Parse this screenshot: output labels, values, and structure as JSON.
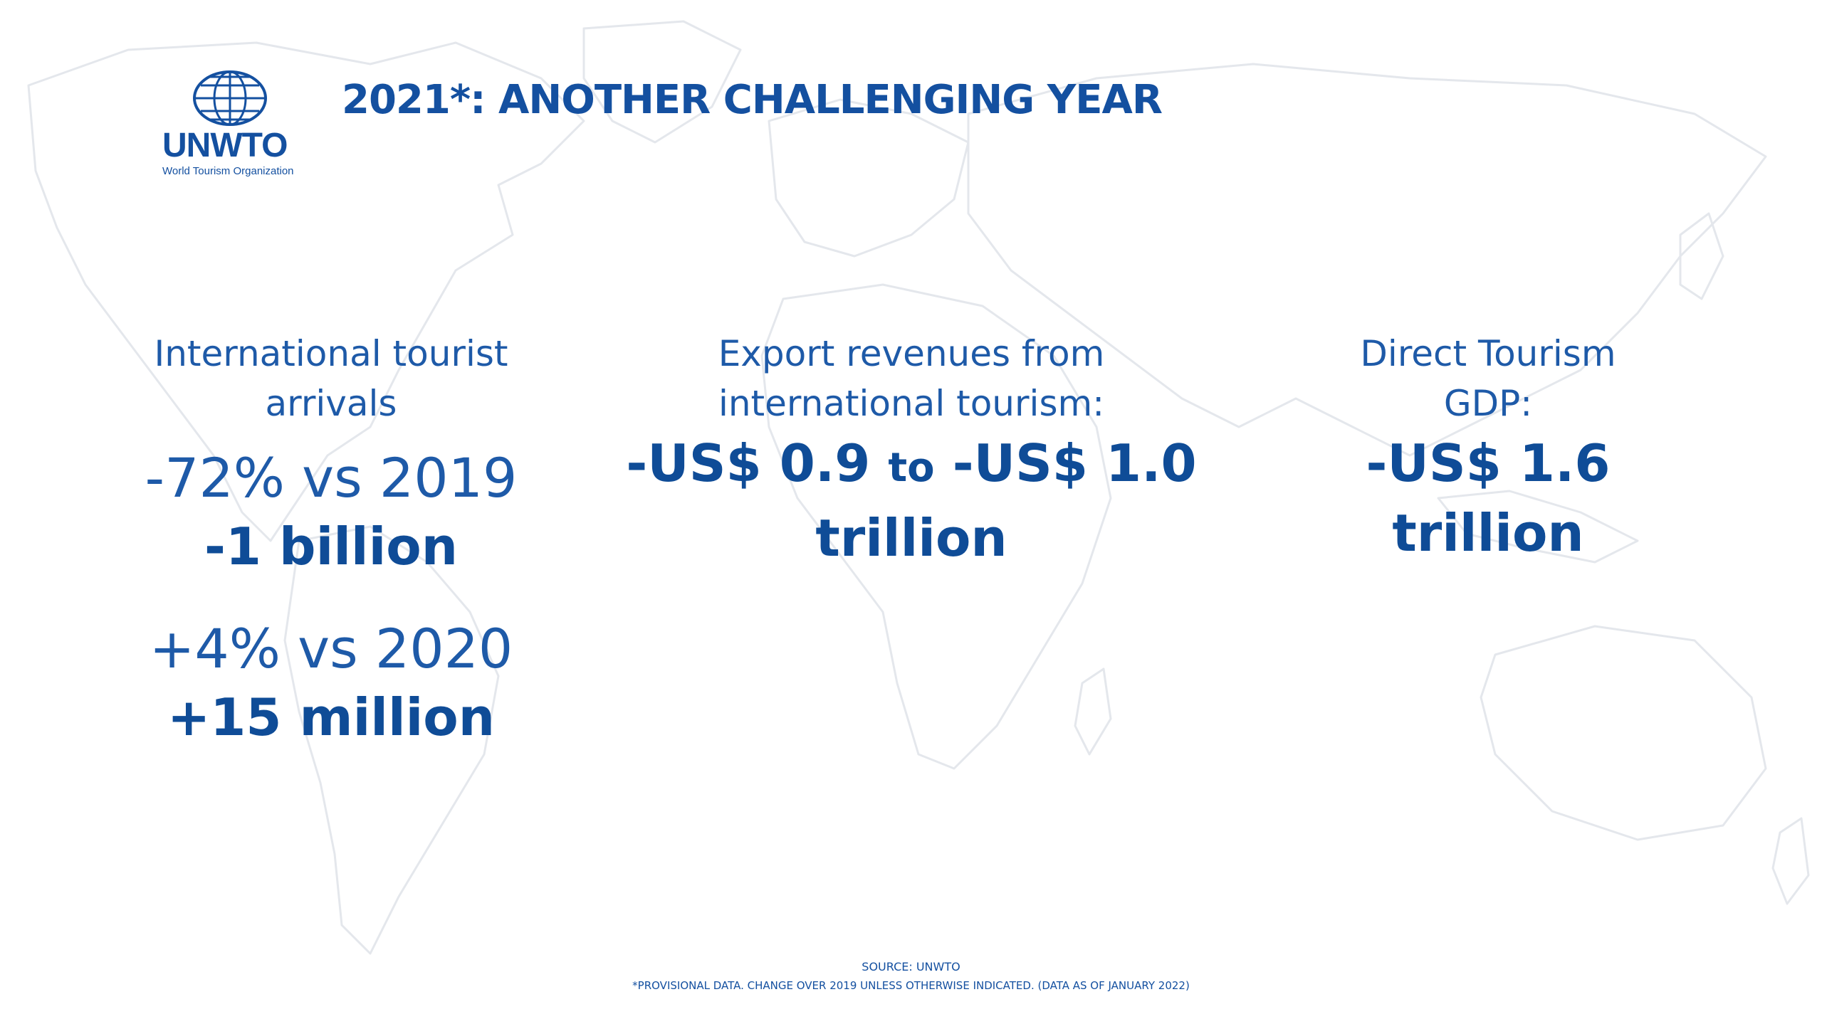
{
  "logo": {
    "name": "UNWTO",
    "subtitle": "World Tourism Organization"
  },
  "title": "2021*: ANOTHER CHALLENGING YEAR",
  "columns": {
    "arrivals": {
      "label_line1": "International tourist",
      "label_line2": "arrivals",
      "vs2019_pct": "-72% vs 2019",
      "vs2019_abs": "-1 billion",
      "vs2020_pct": "+4% vs 2020",
      "vs2020_abs": "+15 million"
    },
    "exports": {
      "label_line1": "Export revenues from",
      "label_line2": "international tourism:",
      "value_part1": "-US$ 0.9 ",
      "value_part2": "to",
      "value_part3": " -US$ 1.0",
      "value_line2": "trillion"
    },
    "gdp": {
      "label_line1": "Direct Tourism",
      "label_line2": "GDP:",
      "value_line1": "-US$ 1.6",
      "value_line2": "trillion"
    }
  },
  "footer": {
    "source": "SOURCE: UNWTO",
    "note": "*PROVISIONAL DATA. CHANGE OVER 2019 UNLESS OTHERWISE INDICATED. (DATA AS OF JANUARY 2022)"
  },
  "colors": {
    "brand_blue": "#1450a0",
    "map_outline": "#e6e9ee"
  },
  "icons": {
    "logo_globe": "globe-icon",
    "background": "world-map"
  }
}
